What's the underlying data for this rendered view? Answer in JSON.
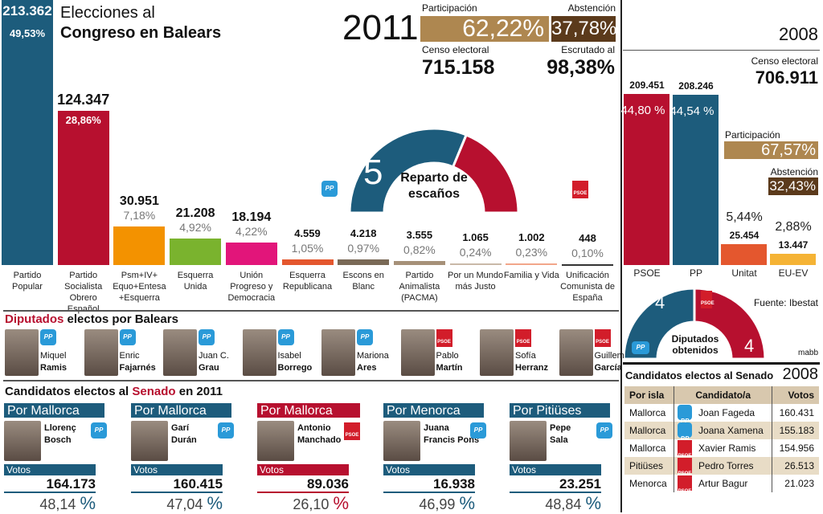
{
  "header": {
    "title_line1": "Elecciones al",
    "title_line2": "Congreso en Balears",
    "year": "2011",
    "participation_label": "Participación",
    "participation": "62,22%",
    "abstention_label": "Abstención",
    "abstention": "37,78%",
    "census_label": "Censo electoral",
    "census": "715.158",
    "counted_label": "Escrutado al",
    "counted": "98,38%"
  },
  "chart_data": [
    {
      "type": "bar",
      "title": "",
      "categories": [
        "Partido Popular",
        "Partido Socialista Obrero Español",
        "Psm+IV+ Equo+Entesa +Esquerra",
        "Esquerra Unida",
        "Unión Progreso y Democracia",
        "Esquerra Republicana",
        "Escons en Blanc",
        "Partido Animalista (PACMA)",
        "Por un Mundo más Justo",
        "Familia y Vida",
        "Unificación Comunista de España"
      ],
      "values": [
        213362,
        124347,
        30951,
        21208,
        18194,
        4559,
        4218,
        3555,
        1065,
        1002,
        448
      ],
      "value_labels": [
        "213.362",
        "124.347",
        "30.951",
        "21.208",
        "18.194",
        "4.559",
        "4.218",
        "3.555",
        "1.065",
        "1.002",
        "448"
      ],
      "percent_labels": [
        "49,53%",
        "28,86%",
        "7,18%",
        "4,92%",
        "4,22%",
        "1,05%",
        "0,97%",
        "0,82%",
        "0,24%",
        "0,23%",
        "0,10%"
      ],
      "colors": [
        "#1d5c7c",
        "#b7102f",
        "#f39200",
        "#7ab32e",
        "#e2157a",
        "#e4572e",
        "#7a6a57",
        "#a69179",
        "#c9b9a8",
        "#f2a68a",
        "#333333"
      ]
    },
    {
      "type": "pie",
      "title": "Reparto de escaños",
      "categories": [
        "PP",
        "PSOE"
      ],
      "values": [
        5,
        3
      ],
      "colors": [
        "#1d5c7c",
        "#b7102f"
      ]
    },
    {
      "type": "bar",
      "title": "2008",
      "categories": [
        "PSOE",
        "PP",
        "Unitat",
        "EU-EV"
      ],
      "values": [
        209451,
        208246,
        25454,
        13447
      ],
      "value_labels": [
        "209.451",
        "208.246",
        "25.454",
        "13.447"
      ],
      "percent_labels": [
        "44,80 %",
        "44,54 %",
        "5,44%",
        "2,88%"
      ],
      "colors": [
        "#b7102f",
        "#1d5c7c",
        "#e4572e",
        "#f5b335"
      ]
    },
    {
      "type": "pie",
      "title": "Diputados obtenidos",
      "categories": [
        "PP",
        "PSOE"
      ],
      "values": [
        4,
        4
      ],
      "colors": [
        "#1d5c7c",
        "#b7102f"
      ]
    }
  ],
  "y2008": {
    "year": "2008",
    "census_label": "Censo electoral",
    "census": "706.911",
    "participation_label": "Participación",
    "participation": "67,57%",
    "abstention_label": "Abstención",
    "abstention": "32,43%",
    "source": "Fuente: Ibestat",
    "credit": "mabb"
  },
  "logos": {
    "pp": "PP",
    "psoe": "PSOE"
  },
  "deputies": {
    "title_red": "Diputados",
    "title_rest": " electos por Balears",
    "items": [
      {
        "first": "Miquel",
        "last": "Ramis",
        "party": "pp"
      },
      {
        "first": "Enric",
        "last": "Fajarnés",
        "party": "pp"
      },
      {
        "first": "Juan C.",
        "last": "Grau",
        "party": "pp"
      },
      {
        "first": "Isabel",
        "last": "Borrego",
        "party": "pp"
      },
      {
        "first": "Mariona",
        "last": "Ares",
        "party": "pp"
      },
      {
        "first": "Pablo",
        "last": "Martín",
        "party": "psoe"
      },
      {
        "first": "Sofía",
        "last": "Herranz",
        "party": "psoe"
      },
      {
        "first": "Guillem",
        "last": "García",
        "party": "psoe"
      }
    ]
  },
  "senate": {
    "title_a": "Candidatos electos al ",
    "title_red": "Senado",
    "title_b": " en 2011",
    "votes_label": "Votos",
    "items": [
      {
        "region": "Por Mallorca",
        "first": "Llorenç",
        "last": "Bosch",
        "party": "pp",
        "votes": "164.173",
        "pct": "48,14",
        "sign": "%"
      },
      {
        "region": "Por Mallorca",
        "first": "Garí",
        "last": "Durán",
        "party": "pp",
        "votes": "160.415",
        "pct": "47,04",
        "sign": "%"
      },
      {
        "region": "Por Mallorca",
        "first": "Antonio",
        "last": "Manchado",
        "party": "psoe",
        "votes": "89.036",
        "pct": "26,10",
        "sign": "%"
      },
      {
        "region": "Por Menorca",
        "first": "Juana",
        "last": "Francis Pons",
        "party": "pp",
        "votes": "16.938",
        "pct": "46,99",
        "sign": "%"
      },
      {
        "region": "Por Pitiüses",
        "first": "Pepe",
        "last": "Sala",
        "party": "pp",
        "votes": "23.251",
        "pct": "48,84",
        "sign": "%"
      }
    ]
  },
  "senate2008": {
    "title": "Candidatos electos al Senado",
    "year": "2008",
    "headers": [
      "Por isla",
      "Candidato/a",
      "Votos"
    ],
    "rows": [
      {
        "island": "Mallorca",
        "name": "Joan Fageda",
        "party": "pp",
        "votes": "160.431"
      },
      {
        "island": "Mallorca",
        "name": "Joana Xamena",
        "party": "pp",
        "votes": "155.183"
      },
      {
        "island": "Mallorca",
        "name": "Xavier Ramis",
        "party": "psoe",
        "votes": "154.956"
      },
      {
        "island": "Pitiüses",
        "name": "Pedro Torres",
        "party": "psoe",
        "votes": "26.513"
      },
      {
        "island": "Menorca",
        "name": "Artur Bagur",
        "party": "psoe",
        "votes": "21.023"
      }
    ]
  }
}
